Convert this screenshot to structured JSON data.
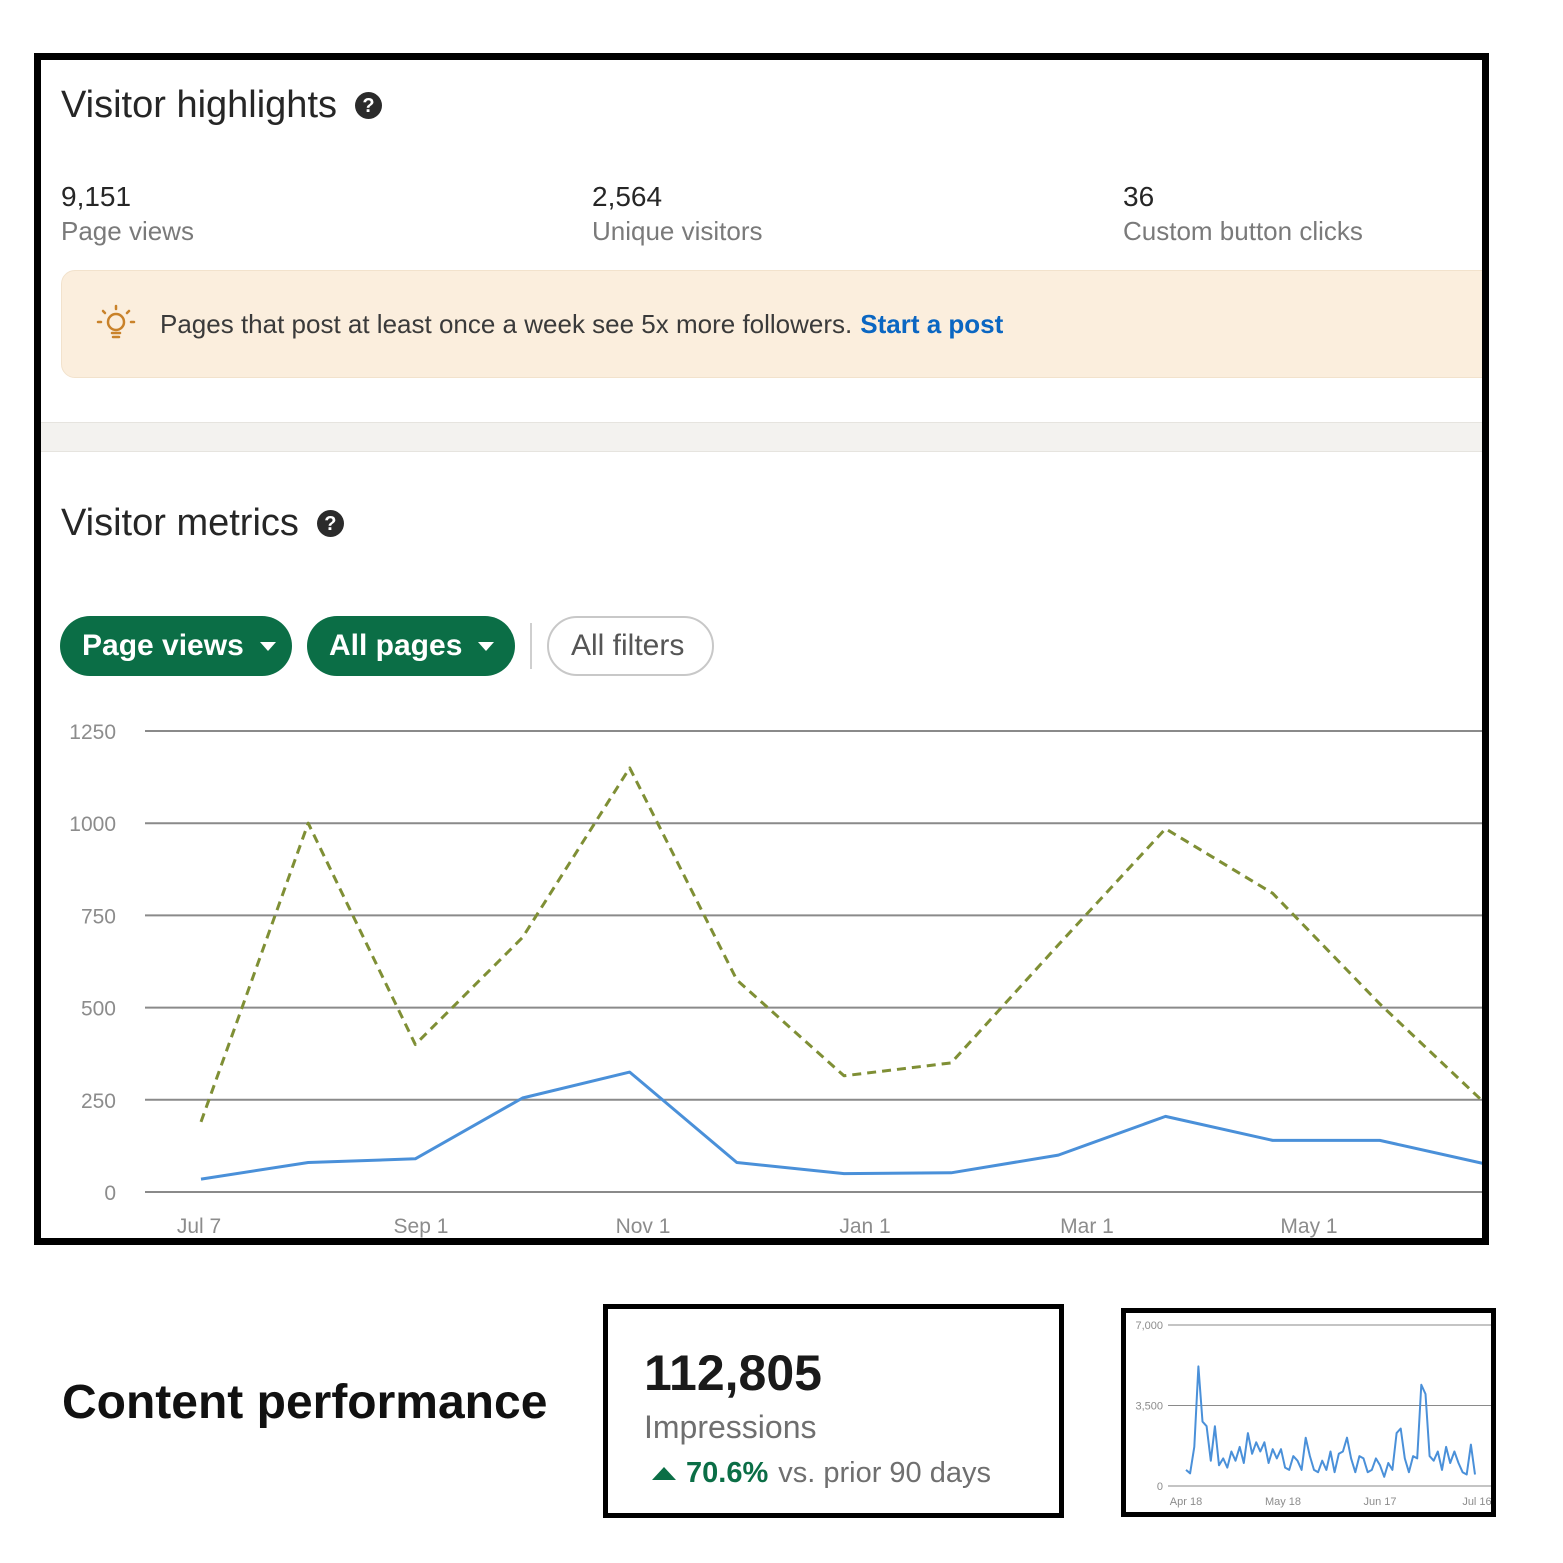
{
  "visitor_highlights": {
    "title": "Visitor highlights",
    "stats": [
      {
        "value": "9,151",
        "label": "Page views"
      },
      {
        "value": "2,564",
        "label": "Unique visitors"
      },
      {
        "value": "36",
        "label": "Custom button clicks"
      }
    ],
    "tip": {
      "text": "Pages that post at least once a week see 5x more followers.",
      "link": "Start a post"
    }
  },
  "visitor_metrics": {
    "title": "Visitor metrics",
    "filters": {
      "metric": "Page views",
      "pages": "All pages",
      "all_filters": "All filters"
    }
  },
  "colors": {
    "brand_green": "#0b6e46",
    "link_blue": "#0a66c2",
    "series_blue": "#4a90d9",
    "series_olive": "#7f8f35"
  },
  "chart_data": [
    {
      "type": "line",
      "y_ticks": [
        "0",
        "250",
        "500",
        "750",
        "1000",
        "1250"
      ],
      "ylim": [
        0,
        1250
      ],
      "x_tick_labels": [
        "Jul 7",
        "Sep 1",
        "Nov 1",
        "Jan 1",
        "Mar 1",
        "May 1"
      ],
      "series": [
        {
          "style": "dashed",
          "color": "#7f8f35",
          "values": [
            190,
            1000,
            400,
            690,
            1150,
            575,
            315,
            350,
            670,
            985,
            810,
            510,
            235
          ]
        },
        {
          "style": "solid",
          "color": "#4a90d9",
          "values": [
            35,
            80,
            90,
            255,
            325,
            80,
            50,
            52,
            100,
            205,
            140,
            140,
            75
          ]
        }
      ],
      "grid": true
    },
    {
      "type": "line",
      "y_ticks": [
        "0",
        "3,500",
        "7,000"
      ],
      "ylim": [
        0,
        7000
      ],
      "x_tick_labels": [
        "Apr 18",
        "May 18",
        "Jun 17",
        "Jul 16"
      ],
      "series": [
        {
          "color": "#4a90d9",
          "values": [
            700,
            550,
            1700,
            5200,
            2800,
            2600,
            1100,
            2600,
            900,
            1200,
            800,
            1500,
            1100,
            1700,
            1000,
            2300,
            1400,
            1900,
            1500,
            1900,
            1000,
            1600,
            1200,
            1600,
            800,
            700,
            1300,
            1100,
            700,
            2100,
            1300,
            700,
            600,
            1100,
            700,
            1500,
            600,
            1400,
            1500,
            2100,
            1200,
            600,
            1300,
            1200,
            600,
            700,
            1200,
            900,
            400,
            1000,
            700,
            2300,
            2500,
            1200,
            600,
            1300,
            1200,
            4400,
            4000,
            1300,
            1100,
            1500,
            700,
            1700,
            1000,
            1500,
            1000,
            600,
            500,
            1800,
            500
          ]
        }
      ],
      "grid": true
    }
  ],
  "content_performance": {
    "title": "Content performance",
    "impressions": {
      "value": "112,805",
      "label": "Impressions",
      "change": "70.6%",
      "change_suffix": "vs. prior 90 days"
    }
  }
}
